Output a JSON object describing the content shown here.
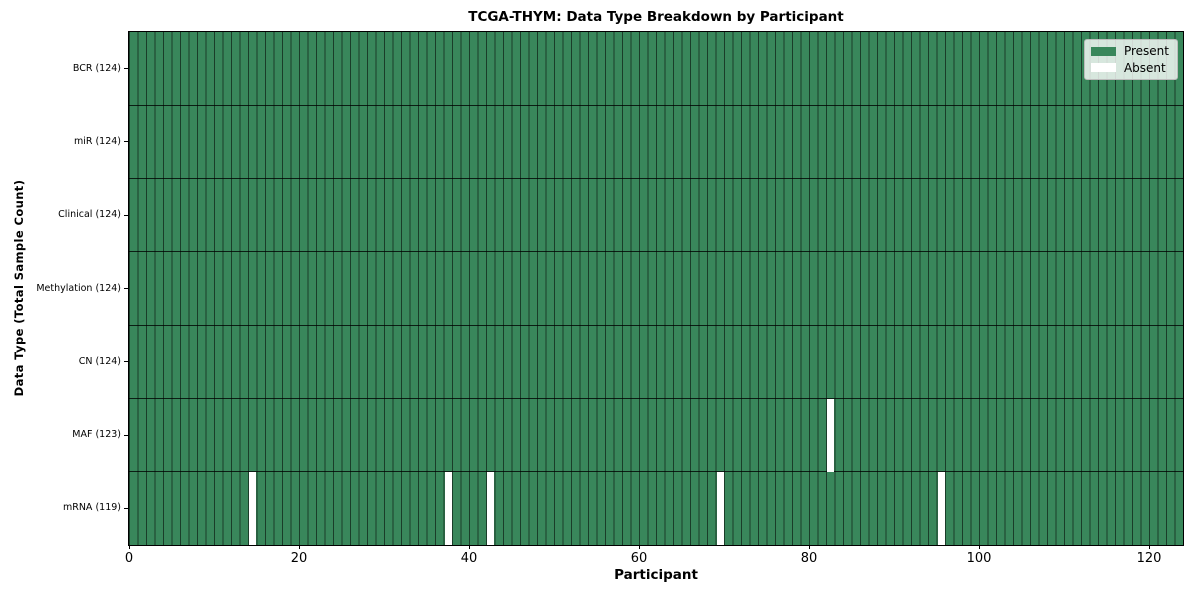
{
  "chart_data": {
    "type": "heatmap",
    "title": "TCGA-THYM: Data Type Breakdown by Participant",
    "xlabel": "Participant",
    "ylabel": "Data Type (Total Sample Count)",
    "n_participants": 124,
    "xlim": [
      0,
      124
    ],
    "x_ticks": [
      0,
      20,
      40,
      60,
      80,
      100,
      120
    ],
    "grid": "cell-edges-on",
    "legend_position": "upper-right",
    "legend": [
      {
        "label": "Present",
        "color": "#39875b"
      },
      {
        "label": "Absent",
        "color": "#ffffff"
      }
    ],
    "colors": {
      "present": "#39875b",
      "absent": "#ffffff",
      "cell_edge": "rgba(0,0,0,0.55)",
      "row_divider": "rgba(0,0,0,0.78)",
      "spine": "#000000"
    },
    "rows": [
      {
        "label": "BCR (124)",
        "data_type": "BCR",
        "total": 124,
        "absent_participants": []
      },
      {
        "label": "miR (124)",
        "data_type": "miR",
        "total": 124,
        "absent_participants": []
      },
      {
        "label": "Clinical (124)",
        "data_type": "Clinical",
        "total": 124,
        "absent_participants": []
      },
      {
        "label": "Methylation (124)",
        "data_type": "Methylation",
        "total": 124,
        "absent_participants": []
      },
      {
        "label": "CN (124)",
        "data_type": "CN",
        "total": 124,
        "absent_participants": []
      },
      {
        "label": "MAF (123)",
        "data_type": "MAF",
        "total": 123,
        "absent_participants": [
          82
        ]
      },
      {
        "label": "mRNA (119)",
        "data_type": "mRNA",
        "total": 119,
        "absent_participants": [
          14,
          37,
          42,
          69,
          95
        ]
      }
    ]
  }
}
